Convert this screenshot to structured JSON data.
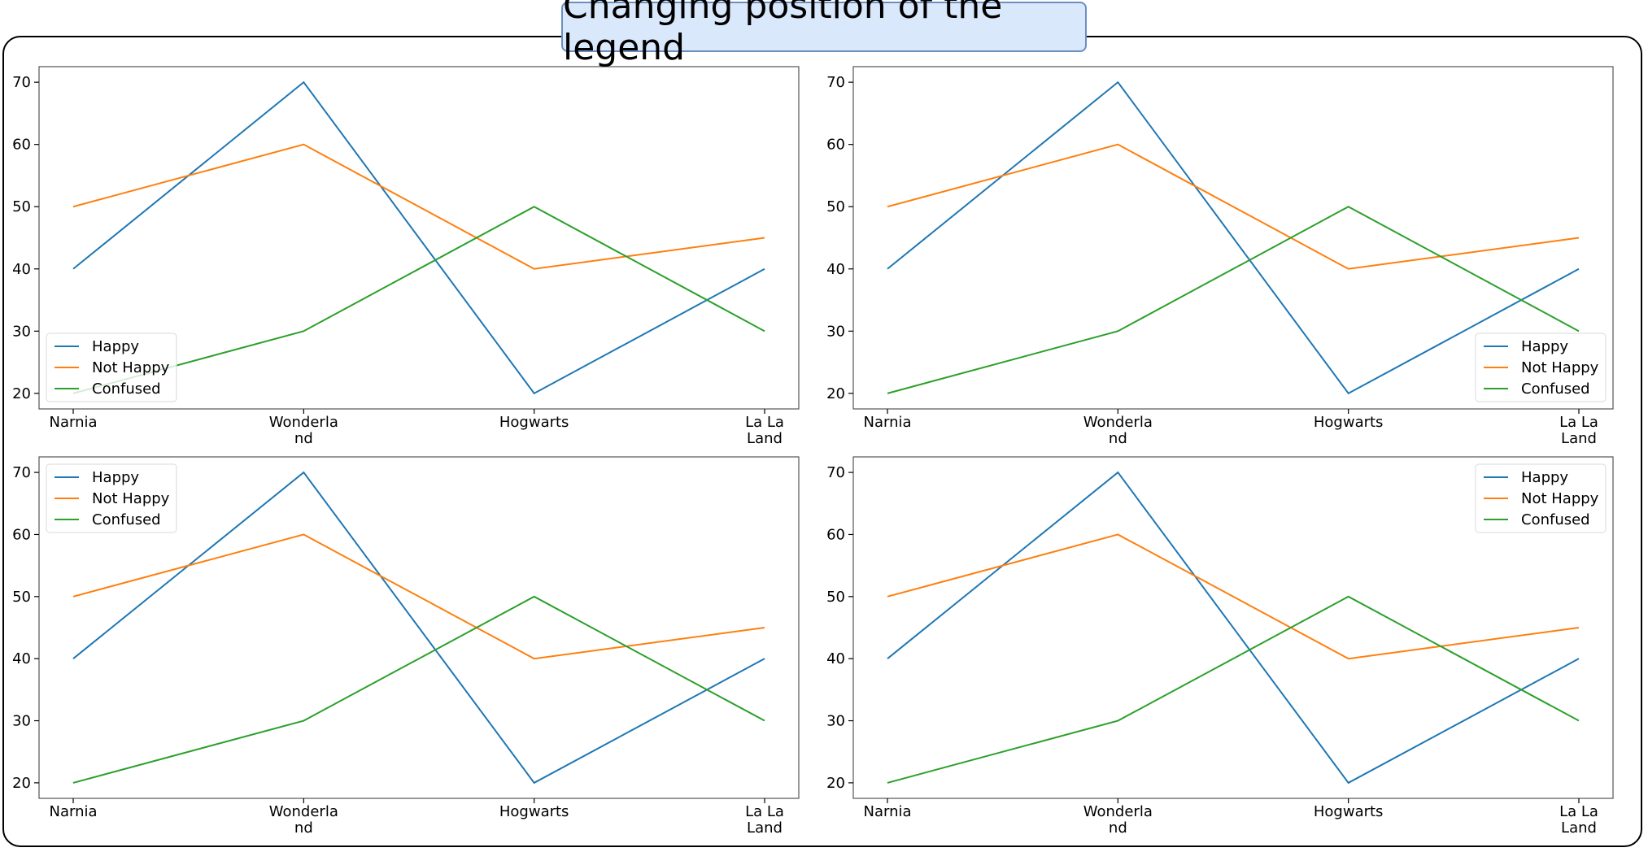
{
  "title": "Changing position of the legend",
  "colors": {
    "happy": "#1f77b4",
    "not_happy": "#ff7f0e",
    "confused": "#2ca02c"
  },
  "chart_data": [
    {
      "type": "line",
      "categories": [
        "Narnia",
        "Wonderland",
        "Hogwarts",
        "La La Land"
      ],
      "series": [
        {
          "name": "Happy",
          "values": [
            40,
            70,
            20,
            40
          ]
        },
        {
          "name": "Not Happy",
          "values": [
            50,
            60,
            40,
            45
          ]
        },
        {
          "name": "Confused",
          "values": [
            20,
            30,
            50,
            30
          ]
        }
      ],
      "yticks": [
        20,
        30,
        40,
        50,
        60,
        70
      ],
      "legend": "lower-left"
    },
    {
      "type": "line",
      "categories": [
        "Narnia",
        "Wonderland",
        "Hogwarts",
        "La La Land"
      ],
      "series": [
        {
          "name": "Happy",
          "values": [
            40,
            70,
            20,
            40
          ]
        },
        {
          "name": "Not Happy",
          "values": [
            50,
            60,
            40,
            45
          ]
        },
        {
          "name": "Confused",
          "values": [
            20,
            30,
            50,
            30
          ]
        }
      ],
      "yticks": [
        20,
        30,
        40,
        50,
        60,
        70
      ],
      "legend": "lower-right"
    },
    {
      "type": "line",
      "categories": [
        "Narnia",
        "Wonderland",
        "Hogwarts",
        "La La Land"
      ],
      "series": [
        {
          "name": "Happy",
          "values": [
            40,
            70,
            20,
            40
          ]
        },
        {
          "name": "Not Happy",
          "values": [
            50,
            60,
            40,
            45
          ]
        },
        {
          "name": "Confused",
          "values": [
            20,
            30,
            50,
            30
          ]
        }
      ],
      "yticks": [
        20,
        30,
        40,
        50,
        60,
        70
      ],
      "legend": "upper-left"
    },
    {
      "type": "line",
      "categories": [
        "Narnia",
        "Wonderland",
        "Hogwarts",
        "La La Land"
      ],
      "series": [
        {
          "name": "Happy",
          "values": [
            40,
            70,
            20,
            40
          ]
        },
        {
          "name": "Not Happy",
          "values": [
            50,
            60,
            40,
            45
          ]
        },
        {
          "name": "Confused",
          "values": [
            20,
            30,
            50,
            30
          ]
        }
      ],
      "yticks": [
        20,
        30,
        40,
        50,
        60,
        70
      ],
      "legend": "upper-right"
    }
  ]
}
